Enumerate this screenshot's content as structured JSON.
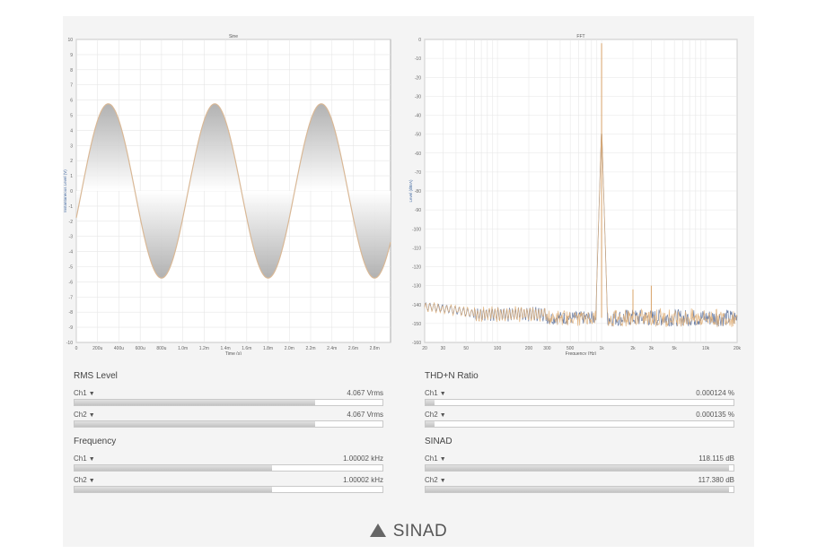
{
  "charts": {
    "sine": {
      "title": "Sine",
      "ylabel": "Instantaneous Level (V)",
      "xlabel": "Time (s)"
    },
    "fft": {
      "title": "FFT",
      "ylabel": "Level (dBrA)",
      "xlabel": "Frequency (Hz)"
    }
  },
  "chart_data": [
    {
      "type": "line",
      "title": "Sine",
      "xlabel": "Time (s)",
      "ylabel": "Instantaneous Level (V)",
      "xlim": [
        0,
        0.00295
      ],
      "ylim": [
        -10,
        10
      ],
      "x_tick_labels": [
        "0",
        "200u",
        "400u",
        "600u",
        "800u",
        "1.0m",
        "1.2m",
        "1.4m",
        "1.6m",
        "1.8m",
        "2.0m",
        "2.2m",
        "2.4m",
        "2.6m",
        "2.8m"
      ],
      "y_ticks": [
        10,
        9,
        8,
        7,
        6,
        5,
        4,
        3,
        2,
        1,
        0,
        -1,
        -2,
        -3,
        -4,
        -5,
        -6,
        -7,
        -8,
        -9,
        -10
      ],
      "series": [
        {
          "amplitude": 5.75,
          "frequency_hz": 1000.02,
          "phase_offset_s": 5e-05,
          "color": "#d9b896"
        }
      ],
      "grid": true
    },
    {
      "type": "line",
      "title": "FFT",
      "xlabel": "Frequency (Hz)",
      "ylabel": "Level (dBrA)",
      "x_scale": "log",
      "xlim": [
        20,
        20000
      ],
      "ylim": [
        -160,
        0
      ],
      "x_tick_labels": [
        "20",
        "30",
        "50",
        "100",
        "200",
        "300",
        "500",
        "1k",
        "2k",
        "3k",
        "5k",
        "10k",
        "20k"
      ],
      "y_ticks": [
        0,
        -10,
        -20,
        -30,
        -40,
        -50,
        -60,
        -70,
        -80,
        -90,
        -100,
        -110,
        -120,
        -130,
        -140,
        -150,
        -160
      ],
      "peaks": [
        {
          "freq": 1000,
          "level": -2
        },
        {
          "freq": 2000,
          "level": -132
        },
        {
          "freq": 3000,
          "level": -130
        }
      ],
      "noise_floor": -147,
      "series": [
        {
          "color": "#6b7fa6"
        },
        {
          "color": "#e0b07a"
        }
      ],
      "grid": true
    }
  ],
  "meters": {
    "rms": {
      "title": "RMS Level",
      "rows": [
        {
          "channel": "Ch1",
          "value": "4.067 Vrms",
          "fill": 0.78
        },
        {
          "channel": "Ch2",
          "value": "4.067 Vrms",
          "fill": 0.78
        }
      ]
    },
    "thdn": {
      "title": "THD+N Ratio",
      "rows": [
        {
          "channel": "Ch1",
          "value": "0.000124 %",
          "fill": 0.03
        },
        {
          "channel": "Ch2",
          "value": "0.000135 %",
          "fill": 0.03
        }
      ]
    },
    "freq": {
      "title": "Frequency",
      "rows": [
        {
          "channel": "Ch1",
          "value": "1.00002 kHz",
          "fill": 0.64
        },
        {
          "channel": "Ch2",
          "value": "1.00002 kHz",
          "fill": 0.64
        }
      ]
    },
    "sinad": {
      "title": "SINAD",
      "rows": [
        {
          "channel": "Ch1",
          "value": "118.115 dB",
          "fill": 0.985
        },
        {
          "channel": "Ch2",
          "value": "117.380 dB",
          "fill": 0.985
        }
      ]
    }
  },
  "caption": "SINAD"
}
